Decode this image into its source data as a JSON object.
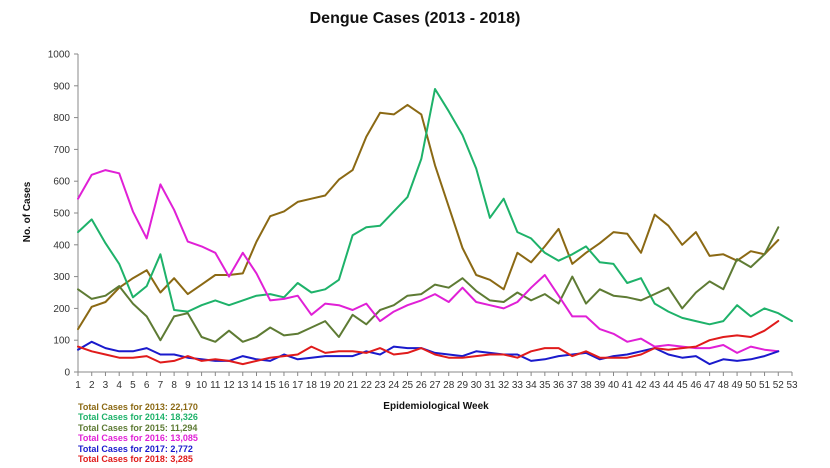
{
  "chart_data": {
    "type": "line",
    "title": "Dengue Cases (2013 - 2018)",
    "xlabel": "Epidemiological Week",
    "ylabel": "No. of Cases",
    "xlim": [
      1,
      53
    ],
    "ylim": [
      0,
      1000
    ],
    "yticks": [
      0,
      100,
      200,
      300,
      400,
      500,
      600,
      700,
      800,
      900,
      1000
    ],
    "x": [
      1,
      2,
      3,
      4,
      5,
      6,
      7,
      8,
      9,
      10,
      11,
      12,
      13,
      14,
      15,
      16,
      17,
      18,
      19,
      20,
      21,
      22,
      23,
      24,
      25,
      26,
      27,
      28,
      29,
      30,
      31,
      32,
      33,
      34,
      35,
      36,
      37,
      38,
      39,
      40,
      41,
      42,
      43,
      44,
      45,
      46,
      47,
      48,
      49,
      50,
      51,
      52,
      53
    ],
    "grid": false,
    "legend": "none",
    "series": [
      {
        "color": "#8B6914",
        "values": [
          135,
          205,
          220,
          265,
          295,
          320,
          250,
          295,
          245,
          275,
          305,
          305,
          310,
          410,
          490,
          505,
          535,
          545,
          555,
          605,
          635,
          740,
          815,
          810,
          840,
          810,
          650,
          520,
          390,
          305,
          290,
          260,
          375,
          345,
          395,
          450,
          340,
          375,
          405,
          440,
          435,
          375,
          495,
          460,
          400,
          440,
          365,
          370,
          350,
          380,
          370,
          415,
          null
        ]
      },
      {
        "color": "#1EB26A",
        "values": [
          440,
          480,
          405,
          340,
          235,
          270,
          370,
          195,
          190,
          210,
          225,
          210,
          225,
          240,
          245,
          235,
          280,
          250,
          260,
          290,
          430,
          455,
          460,
          505,
          550,
          670,
          890,
          820,
          745,
          640,
          485,
          545,
          440,
          420,
          375,
          350,
          370,
          395,
          345,
          340,
          280,
          295,
          215,
          190,
          170,
          160,
          150,
          160,
          210,
          175,
          200,
          185,
          160
        ]
      },
      {
        "color": "#5E7B34",
        "values": [
          260,
          230,
          240,
          270,
          215,
          175,
          100,
          175,
          185,
          110,
          95,
          130,
          95,
          110,
          140,
          115,
          120,
          140,
          160,
          110,
          180,
          150,
          195,
          210,
          240,
          245,
          275,
          265,
          295,
          255,
          225,
          220,
          250,
          225,
          245,
          215,
          300,
          215,
          260,
          240,
          235,
          225,
          245,
          265,
          200,
          250,
          285,
          260,
          355,
          330,
          370,
          455,
          null
        ]
      },
      {
        "color": "#E020D6",
        "values": [
          545,
          620,
          635,
          625,
          505,
          420,
          590,
          510,
          410,
          395,
          375,
          300,
          375,
          310,
          225,
          230,
          240,
          180,
          215,
          210,
          195,
          215,
          160,
          190,
          210,
          225,
          245,
          220,
          265,
          220,
          210,
          200,
          220,
          265,
          305,
          240,
          175,
          175,
          135,
          120,
          95,
          105,
          80,
          85,
          80,
          75,
          75,
          85,
          60,
          80,
          70,
          65,
          null
        ]
      },
      {
        "color": "#1A1ACC",
        "values": [
          70,
          95,
          75,
          65,
          65,
          75,
          55,
          55,
          45,
          40,
          35,
          35,
          50,
          40,
          35,
          55,
          40,
          45,
          50,
          50,
          50,
          65,
          55,
          80,
          75,
          75,
          60,
          55,
          50,
          65,
          60,
          55,
          55,
          35,
          40,
          50,
          55,
          60,
          40,
          50,
          55,
          65,
          75,
          55,
          45,
          50,
          25,
          40,
          35,
          40,
          50,
          65,
          null
        ]
      },
      {
        "color": "#E01B1B",
        "values": [
          80,
          65,
          55,
          45,
          45,
          50,
          30,
          35,
          50,
          35,
          40,
          35,
          25,
          35,
          45,
          50,
          55,
          80,
          60,
          65,
          65,
          60,
          75,
          55,
          60,
          75,
          55,
          45,
          45,
          50,
          55,
          55,
          45,
          65,
          75,
          75,
          50,
          65,
          45,
          45,
          45,
          55,
          75,
          70,
          75,
          80,
          100,
          110,
          115,
          110,
          130,
          160,
          null
        ]
      }
    ]
  },
  "totals": [
    {
      "text": "Total Cases for 2013: 22,170",
      "color": "#8B6914"
    },
    {
      "text": "Total Cases for 2014: 18,326",
      "color": "#1EB26A"
    },
    {
      "text": "Total Cases for 2015: 11,294",
      "color": "#5E7B34"
    },
    {
      "text": "Total Cases for 2016: 13,085",
      "color": "#E020D6"
    },
    {
      "text": "Total Cases for 2017: 2,772",
      "color": "#1A1ACC"
    },
    {
      "text": "Total Cases for 2018: 3,285",
      "color": "#E01B1B"
    }
  ]
}
